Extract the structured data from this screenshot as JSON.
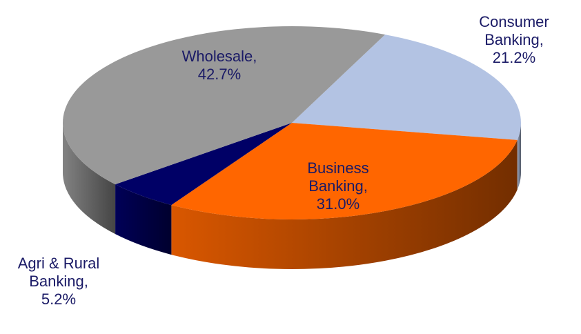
{
  "chart_data": {
    "type": "pie3d",
    "values": [
      21.2,
      31.0,
      5.2,
      42.7
    ],
    "value_labels": [
      "Consumer Banking, 21.2%",
      "Business Banking, 31.0%",
      "Agri & Rural Banking, 5.2%",
      "Wholesale, 42.7%"
    ],
    "colors": [
      "#b3c3e3",
      "#ff6600",
      "#000066",
      "#999999"
    ]
  }
}
